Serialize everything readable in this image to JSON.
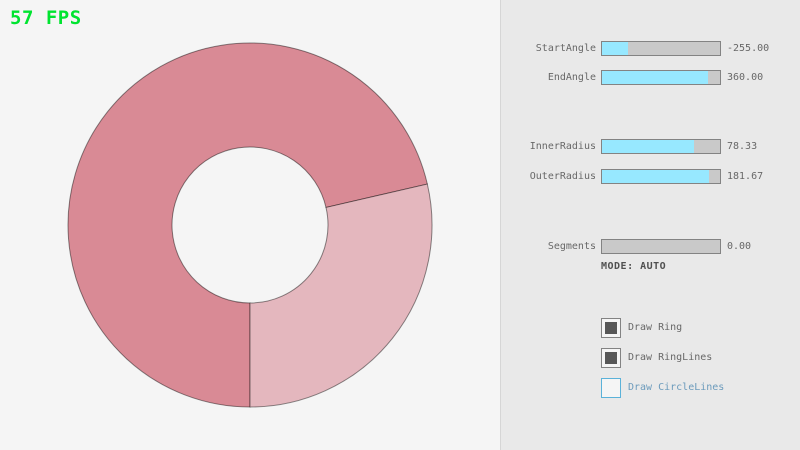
{
  "fps": {
    "text": "57 FPS",
    "color": "#00e430"
  },
  "ring": {
    "color_dark": "#d98a95",
    "color_light": "#e4b7be",
    "line_color": "rgba(0,0,0,0.45)",
    "start_angle": -255.0,
    "end_angle": 360.0,
    "inner_radius": 78.33,
    "outer_radius": 181.67,
    "segments": 0.0
  },
  "panel": {
    "slider_fill_color": "#97e8ff",
    "sliders": [
      {
        "label": "StartAngle",
        "value": "-255.00",
        "fill_pct": 22
      },
      {
        "label": "EndAngle",
        "value": "360.00",
        "fill_pct": 90
      },
      {
        "label": "InnerRadius",
        "value": "78.33",
        "fill_pct": 78
      },
      {
        "label": "OuterRadius",
        "value": "181.67",
        "fill_pct": 91
      },
      {
        "label": "Segments",
        "value": "0.00",
        "fill_pct": 0
      }
    ],
    "mode_text": "MODE: AUTO",
    "mode_color": "#505050",
    "checkboxes": [
      {
        "label": "Draw Ring",
        "checked": true,
        "label_color": "#686868",
        "border_color": "#838383"
      },
      {
        "label": "Draw RingLines",
        "checked": true,
        "label_color": "#686868",
        "border_color": "#838383"
      },
      {
        "label": "Draw CircleLines",
        "checked": false,
        "label_color": "#6c9bbc",
        "border_color": "#5bb2d9"
      }
    ]
  }
}
